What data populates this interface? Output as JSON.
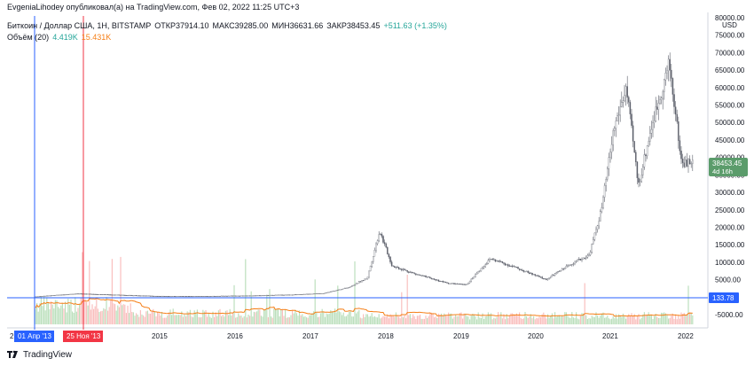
{
  "header": {
    "published": "EvgeniaLihodey опубликовал(а) на TradingView.com, Фев 02, 2022 11:25 UTC+3"
  },
  "legend": {
    "symbol": "Биткоин / Доллар США, 1Н, BITSTAMP",
    "open": "ОТКР37914.10",
    "high": "МАКС39285.00",
    "low": "МИН36631.66",
    "close": "ЗАКР38453.45",
    "change": "+511.63 (+1.35%)",
    "volume_title": "Объём (20)",
    "volume_value": "4.419K",
    "volume_ma": "15.431K"
  },
  "price_axis": {
    "currency": "USD",
    "ticks": [
      "80000.00",
      "75000.00",
      "70000.00",
      "65000.00",
      "60000.00",
      "55000.00",
      "50000.00",
      "45000.00",
      "40000.00",
      "35000.00",
      "30000.00",
      "25000.00",
      "20000.00",
      "15000.00",
      "10000.00",
      "5000.00",
      "-5000.00"
    ],
    "last_price": "38453.45",
    "countdown": "4d 16h",
    "crosshair_price": "133.78"
  },
  "time_axis": {
    "ticks": [
      "2015",
      "2016",
      "2017",
      "2018",
      "2019",
      "2020",
      "2021",
      "2022"
    ],
    "start_label": "2",
    "crosshair_labels": [
      "01 Апр '13",
      "25 Ноя '13"
    ]
  },
  "footer": {
    "brand": "TradingView"
  },
  "colors": {
    "up": "#26a69a",
    "down": "#ef5350",
    "candle": "#5d606b",
    "ma": "#f57f17",
    "crosshair_blue": "#2962ff",
    "crosshair_red": "#f23645",
    "last_price_bg": "#5b9c6b"
  },
  "chart_data": {
    "type": "line",
    "series": [
      {
        "name": "Биткоин / Доллар США",
        "x": [
          "2013-04",
          "2013-11",
          "2014-06",
          "2015-01",
          "2015-08",
          "2016-03",
          "2016-10",
          "2017-03",
          "2017-07",
          "2017-10",
          "2017-12",
          "2018-02",
          "2018-06",
          "2018-11",
          "2019-02",
          "2019-06",
          "2019-10",
          "2020-03",
          "2020-07",
          "2020-10",
          "2020-12",
          "2021-02",
          "2021-04",
          "2021-06",
          "2021-08",
          "2021-11",
          "2022-01"
        ],
        "values": [
          130,
          1000,
          600,
          250,
          260,
          420,
          700,
          1100,
          2800,
          5500,
          19000,
          9000,
          6500,
          4000,
          3500,
          11000,
          8500,
          5000,
          9500,
          12000,
          25000,
          48000,
          60000,
          32000,
          48000,
          67000,
          38453
        ]
      }
    ],
    "ylim": [
      -5000,
      80000
    ]
  }
}
